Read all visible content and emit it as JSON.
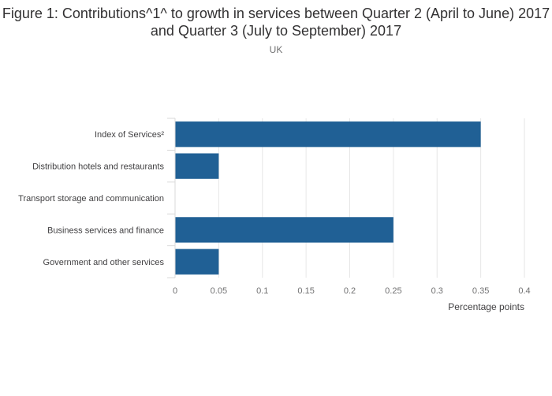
{
  "chart_data": {
    "type": "bar",
    "orientation": "horizontal",
    "title": "Figure 1: Contributions^1^ to growth in services between Quarter 2 (April to June) 2017 and Quarter 3 (July to September) 2017",
    "subtitle": "UK",
    "xlabel": "Percentage points",
    "ylabel": "",
    "categories": [
      "Index of Services²",
      "Distribution hotels and restaurants",
      "Transport storage and communication",
      "Business services and finance",
      "Government and other services"
    ],
    "values": [
      0.35,
      0.05,
      0.0,
      0.25,
      0.05
    ],
    "xlim": [
      0,
      0.4
    ],
    "xticks": [
      0,
      0.05,
      0.1,
      0.15,
      0.2,
      0.25,
      0.3,
      0.35,
      0.4
    ],
    "xtick_labels": [
      "0",
      "0.05",
      "0.1",
      "0.15",
      "0.2",
      "0.25",
      "0.3",
      "0.35",
      "0.4"
    ],
    "grid": true,
    "bar_color": "#206095",
    "grid_color": "#e6e6e6"
  }
}
